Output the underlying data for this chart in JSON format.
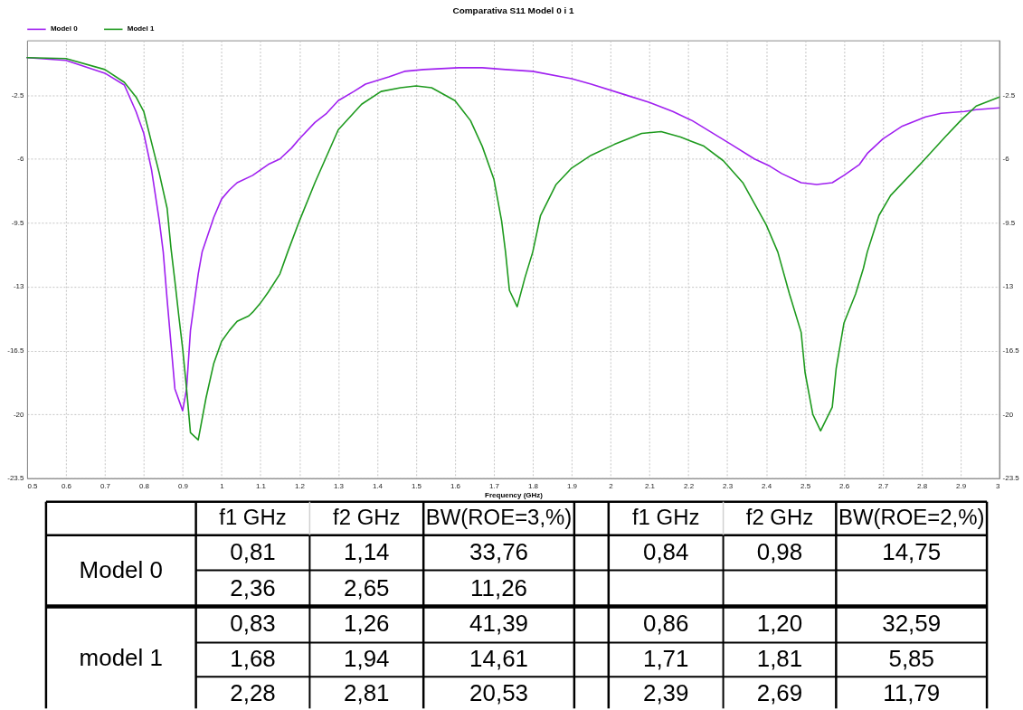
{
  "chart_data": [
    {
      "type": "line",
      "title": "Comparativa S11 Model 0 i 1",
      "xlabel": "Frequency (GHz)",
      "xlim": [
        0.5,
        3
      ],
      "xticks": [
        0.5,
        0.6,
        0.7,
        0.8,
        0.9,
        1,
        1.1,
        1.2,
        1.3,
        1.4,
        1.5,
        1.6,
        1.7,
        1.8,
        1.9,
        2,
        2.1,
        2.2,
        2.3,
        2.4,
        2.5,
        2.6,
        2.7,
        2.8,
        2.9,
        3
      ],
      "ylim": [
        -23.5,
        0.5
      ],
      "yticks": [
        -23.5,
        -20,
        -16.5,
        -13,
        -9.5,
        -6,
        -2.5
      ],
      "y2lim": [
        -23.5,
        0.5
      ],
      "y2ticks": [
        -23.5,
        -20,
        -16.5,
        -13,
        -9.5,
        -6,
        -2.5
      ],
      "grid": true,
      "legend": "top left",
      "line_style": "solid",
      "series": [
        {
          "name": "Model 0",
          "color": "#a020f0",
          "x": [
            0.5,
            0.6,
            0.7,
            0.75,
            0.78,
            0.8,
            0.82,
            0.84,
            0.85,
            0.86,
            0.88,
            0.9,
            0.91,
            0.92,
            0.94,
            0.95,
            0.98,
            1.0,
            1.02,
            1.04,
            1.08,
            1.1,
            1.12,
            1.15,
            1.18,
            1.2,
            1.24,
            1.27,
            1.3,
            1.34,
            1.37,
            1.43,
            1.47,
            1.52,
            1.61,
            1.67,
            1.73,
            1.8,
            1.9,
            1.95,
            2.04,
            2.1,
            2.16,
            2.21,
            2.31,
            2.37,
            2.41,
            2.44,
            2.49,
            2.53,
            2.57,
            2.6,
            2.64,
            2.66,
            2.7,
            2.75,
            2.81,
            2.85,
            2.91,
            2.94,
            3.0
          ],
          "values": [
            -0.45,
            -0.6,
            -1.3,
            -1.95,
            -3.4,
            -4.6,
            -6.6,
            -9.4,
            -11.1,
            -13.7,
            -18.6,
            -19.8,
            -18.6,
            -15.4,
            -12.3,
            -11.1,
            -9.2,
            -8.2,
            -7.7,
            -7.3,
            -6.9,
            -6.6,
            -6.3,
            -6.0,
            -5.4,
            -4.9,
            -4.0,
            -3.5,
            -2.8,
            -2.3,
            -1.9,
            -1.5,
            -1.2,
            -1.1,
            -1.0,
            -1.0,
            -1.1,
            -1.2,
            -1.6,
            -1.9,
            -2.5,
            -2.9,
            -3.4,
            -3.9,
            -5.2,
            -6.0,
            -6.4,
            -6.8,
            -7.3,
            -7.4,
            -7.3,
            -6.9,
            -6.3,
            -5.7,
            -4.9,
            -4.2,
            -3.7,
            -3.5,
            -3.4,
            -3.3,
            -3.2
          ]
        },
        {
          "name": "Model 1",
          "color": "#1e9a1e",
          "x": [
            0.5,
            0.6,
            0.7,
            0.75,
            0.78,
            0.8,
            0.82,
            0.84,
            0.86,
            0.87,
            0.88,
            0.89,
            0.9,
            0.91,
            0.92,
            0.94,
            0.96,
            0.98,
            1.0,
            1.02,
            1.04,
            1.07,
            1.08,
            1.1,
            1.12,
            1.15,
            1.17,
            1.2,
            1.24,
            1.3,
            1.36,
            1.41,
            1.46,
            1.5,
            1.54,
            1.6,
            1.64,
            1.67,
            1.7,
            1.72,
            1.73,
            1.74,
            1.76,
            1.78,
            1.8,
            1.82,
            1.86,
            1.9,
            1.95,
            2.01,
            2.08,
            2.13,
            2.18,
            2.24,
            2.29,
            2.34,
            2.4,
            2.43,
            2.46,
            2.49,
            2.5,
            2.52,
            2.54,
            2.57,
            2.58,
            2.6,
            2.63,
            2.65,
            2.66,
            2.69,
            2.72,
            2.8,
            2.86,
            2.9,
            2.94,
            3.0
          ],
          "values": [
            -0.45,
            -0.5,
            -1.1,
            -1.8,
            -2.6,
            -3.4,
            -5.1,
            -6.8,
            -8.7,
            -10.9,
            -12.7,
            -14.6,
            -16.4,
            -18.6,
            -21.0,
            -21.4,
            -19.1,
            -17.2,
            -16.0,
            -15.4,
            -14.9,
            -14.6,
            -14.4,
            -13.9,
            -13.3,
            -12.3,
            -11.1,
            -9.4,
            -7.3,
            -4.4,
            -3.0,
            -2.3,
            -2.1,
            -2.0,
            -2.1,
            -2.8,
            -3.9,
            -5.3,
            -7.1,
            -9.4,
            -11.1,
            -13.2,
            -14.1,
            -12.5,
            -11.1,
            -9.1,
            -7.4,
            -6.5,
            -5.8,
            -5.2,
            -4.6,
            -4.5,
            -4.8,
            -5.3,
            -6.1,
            -7.3,
            -9.6,
            -11.1,
            -13.4,
            -15.5,
            -17.7,
            -20.0,
            -20.9,
            -19.6,
            -17.5,
            -15.0,
            -13.4,
            -12.0,
            -11.1,
            -9.1,
            -8.0,
            -6.2,
            -4.8,
            -3.9,
            -3.1,
            -2.6
          ]
        }
      ]
    },
    {
      "type": "other",
      "categories": [
        "f1 GHz",
        "f2 GHz",
        "BW(ROE=3,%)",
        null,
        "f1 GHz",
        "f2 GHz",
        "BW(ROE=2,%)"
      ],
      "y_categories": [
        "Model 0",
        null,
        "model 1",
        null,
        null
      ],
      "cell_labels": [
        [
          "0,81",
          "1,14",
          "33,76",
          null,
          "0,84",
          "0,98",
          "14,75"
        ],
        [
          "2,36",
          "2,65",
          "11,26",
          null,
          null,
          null,
          null
        ],
        [
          "0,83",
          "1,26",
          "41,39",
          null,
          "0,86",
          "1,20",
          "32,59"
        ],
        [
          "1,68",
          "1,94",
          "14,61",
          null,
          "1,71",
          "1,81",
          "5,85"
        ],
        [
          "2,28",
          "2,81",
          "20,53",
          null,
          "2,39",
          "2,69",
          "11,79"
        ]
      ]
    }
  ]
}
